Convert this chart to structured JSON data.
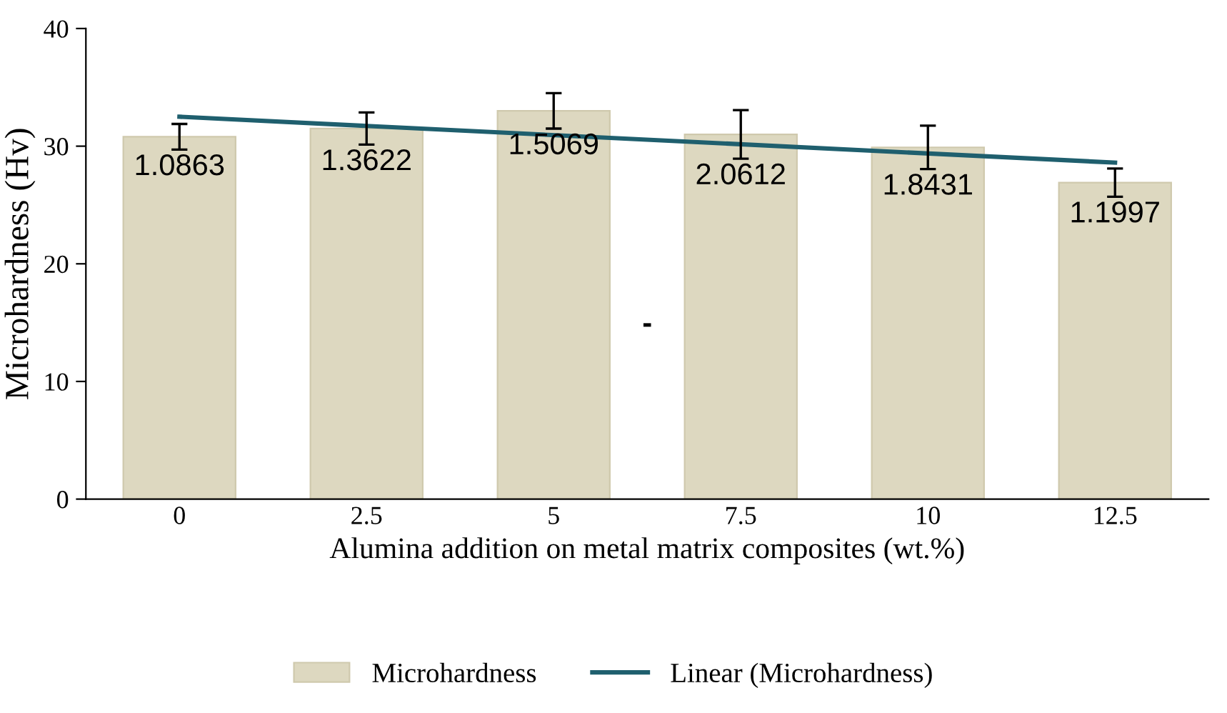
{
  "chart_data": {
    "type": "bar",
    "xlabel": "Alumina addition on metal matrix composites (wt.%)",
    "ylabel": "Microhardness (Hv)",
    "categories": [
      "0",
      "2.5",
      "5",
      "7.5",
      "10",
      "12.5"
    ],
    "series": [
      {
        "name": "Microhardness",
        "color": "#ddd8c0",
        "values": [
          30.8,
          31.5,
          33.0,
          31.0,
          29.9,
          26.9
        ],
        "errors": [
          1.0863,
          1.3622,
          1.5069,
          2.0612,
          1.8431,
          1.1997
        ]
      },
      {
        "name": "Linear (Microhardness)",
        "type": "line",
        "color": "#1f5f6e",
        "x": [
          "0",
          "12.5"
        ],
        "values": [
          32.5,
          28.6
        ]
      }
    ],
    "annotations": [
      "1.0863",
      "1.3622",
      "1.5069",
      "2.0612",
      "1.8431",
      "1.1997",
      "-"
    ],
    "ylim": [
      0,
      40
    ],
    "yticks": [
      0,
      10,
      20,
      30,
      40
    ],
    "grid": false,
    "legend": "bottom",
    "line_style": "solid",
    "marker": "none"
  }
}
